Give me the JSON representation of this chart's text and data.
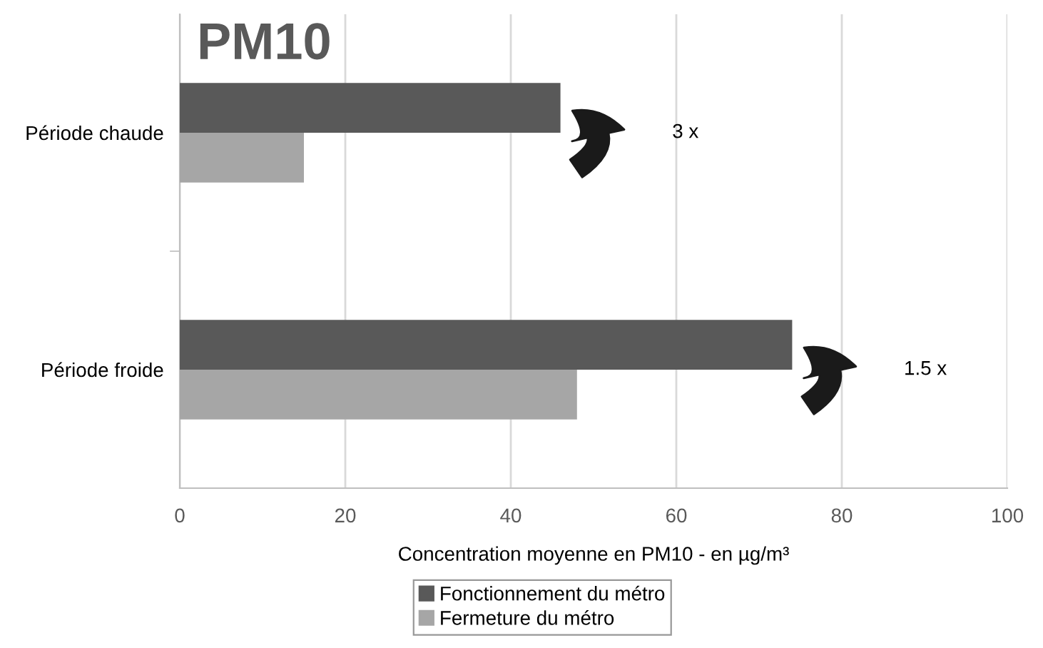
{
  "chart_data": {
    "type": "bar",
    "orientation": "horizontal",
    "title": "PM10",
    "xlabel": "Concentration moyenne en PM10 - en µg/m³",
    "categories": [
      "Période chaude",
      "Période froide"
    ],
    "series": [
      {
        "name": "Fonctionnement du métro",
        "color": "#595959",
        "values": [
          46,
          74
        ]
      },
      {
        "name": "Fermeture du métro",
        "color": "#a6a6a6",
        "values": [
          15,
          48
        ]
      }
    ],
    "xlim": [
      0,
      100
    ],
    "xticks": [
      0,
      20,
      40,
      60,
      80,
      100
    ],
    "grid": "x",
    "legend": "bottom",
    "annotations": [
      "3 x",
      "1.5 x"
    ]
  }
}
